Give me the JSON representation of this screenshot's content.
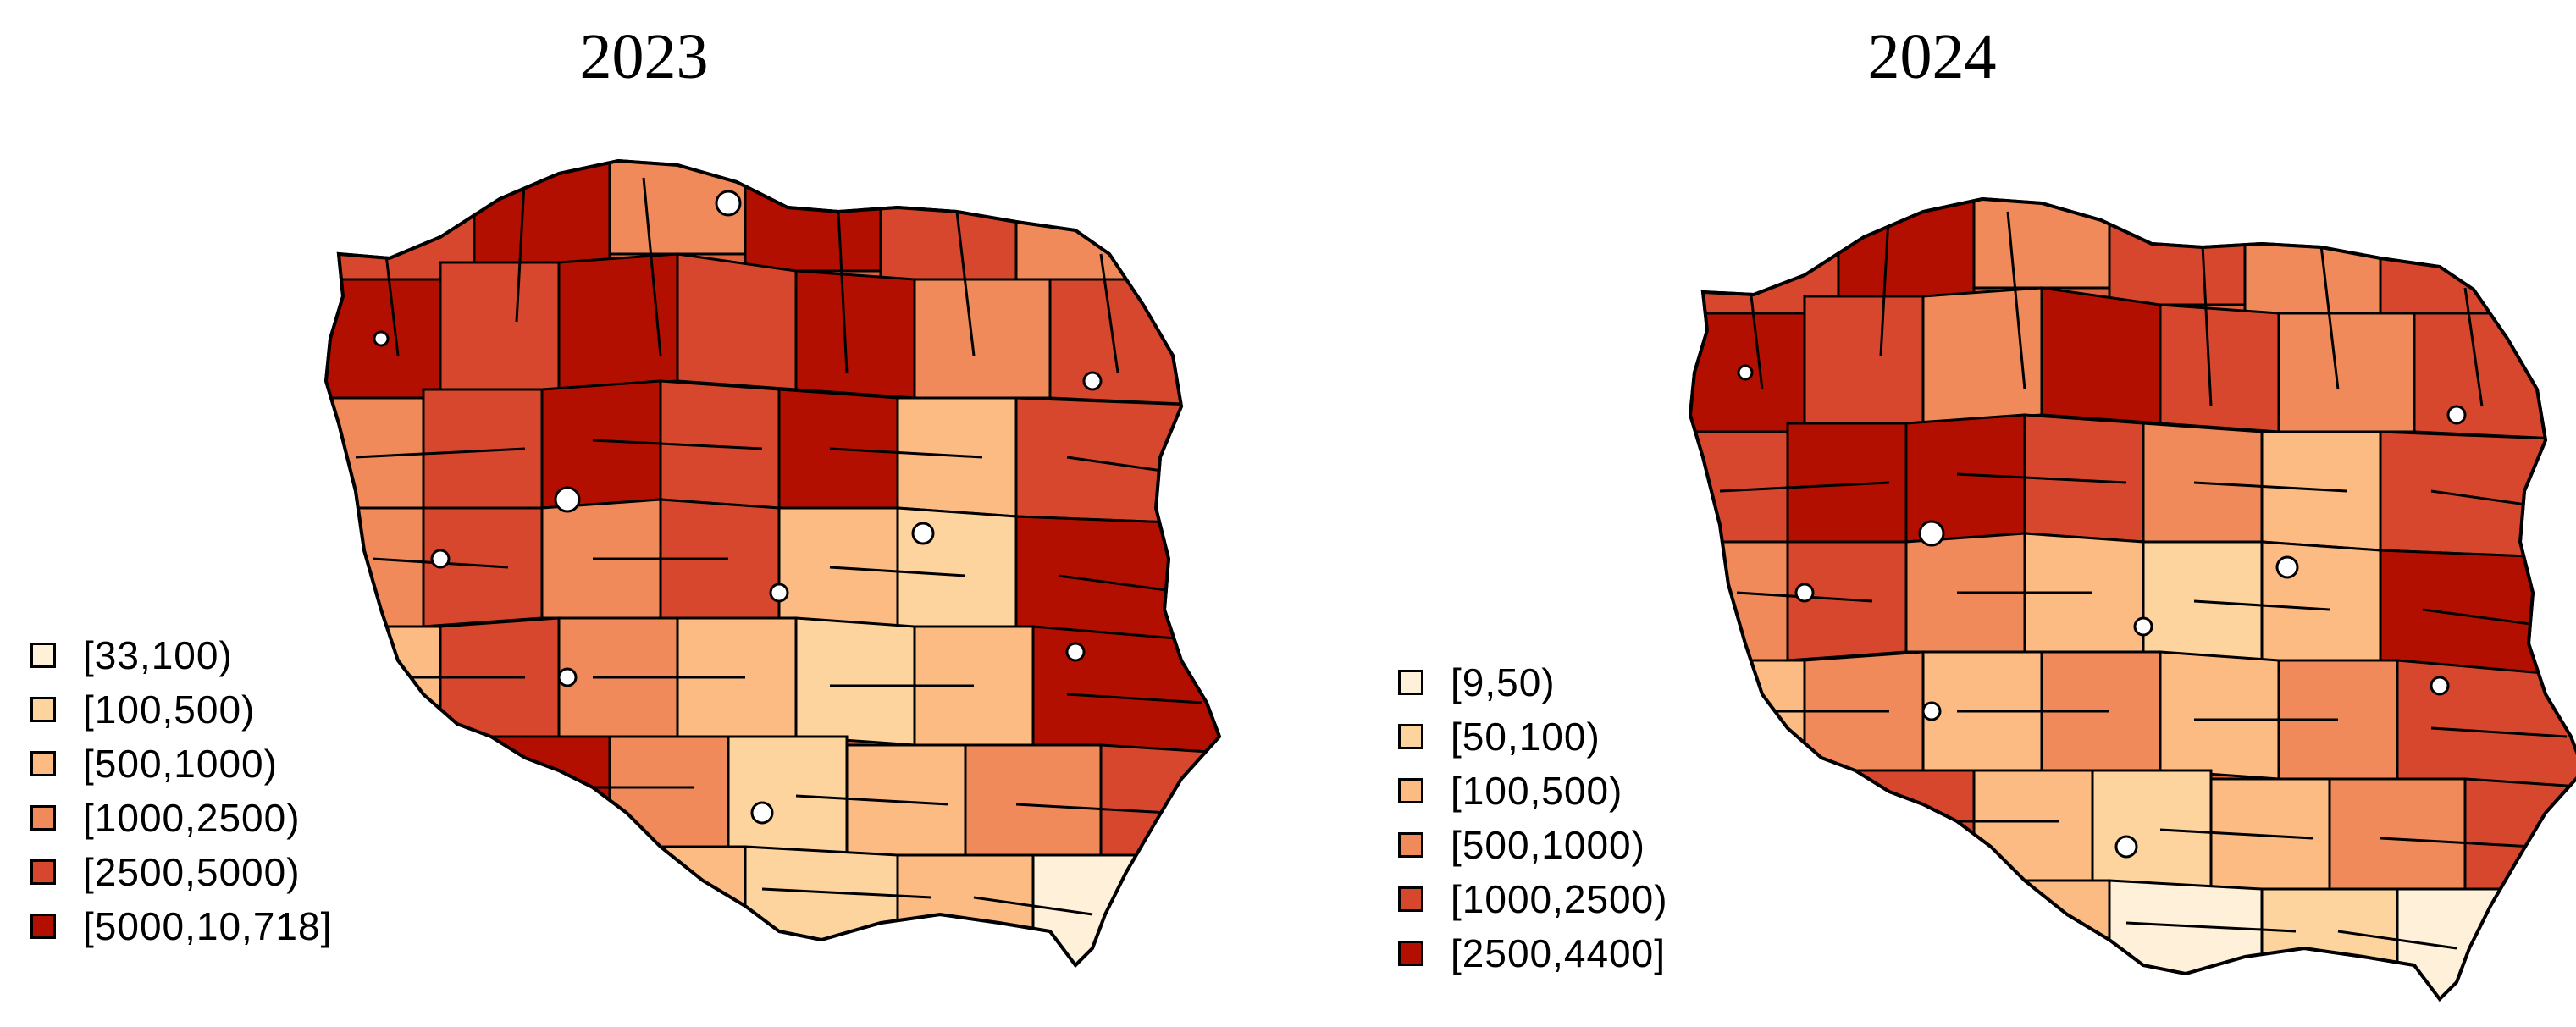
{
  "maps": [
    {
      "title": "2023",
      "legend": [
        {
          "label": "[33,100)",
          "color": "#FEF0D9"
        },
        {
          "label": "[100,500)",
          "color": "#FDD49E"
        },
        {
          "label": "[500,1000)",
          "color": "#FDBB84"
        },
        {
          "label": "[1000,2500)",
          "color": "#F08A5A"
        },
        {
          "label": "[2500,5000)",
          "color": "#D7472E"
        },
        {
          "label": "[5000,10,718]",
          "color": "#B30F00"
        }
      ]
    },
    {
      "title": "2024",
      "legend": [
        {
          "label": "[9,50)",
          "color": "#FEF0D9"
        },
        {
          "label": "[50,100)",
          "color": "#FDD49E"
        },
        {
          "label": "[100,500)",
          "color": "#FDBB84"
        },
        {
          "label": "[500,1000)",
          "color": "#F08A5A"
        },
        {
          "label": "[1000,2500)",
          "color": "#D7472E"
        },
        {
          "label": "[2500,4400]",
          "color": "#B30F00"
        }
      ]
    }
  ]
}
